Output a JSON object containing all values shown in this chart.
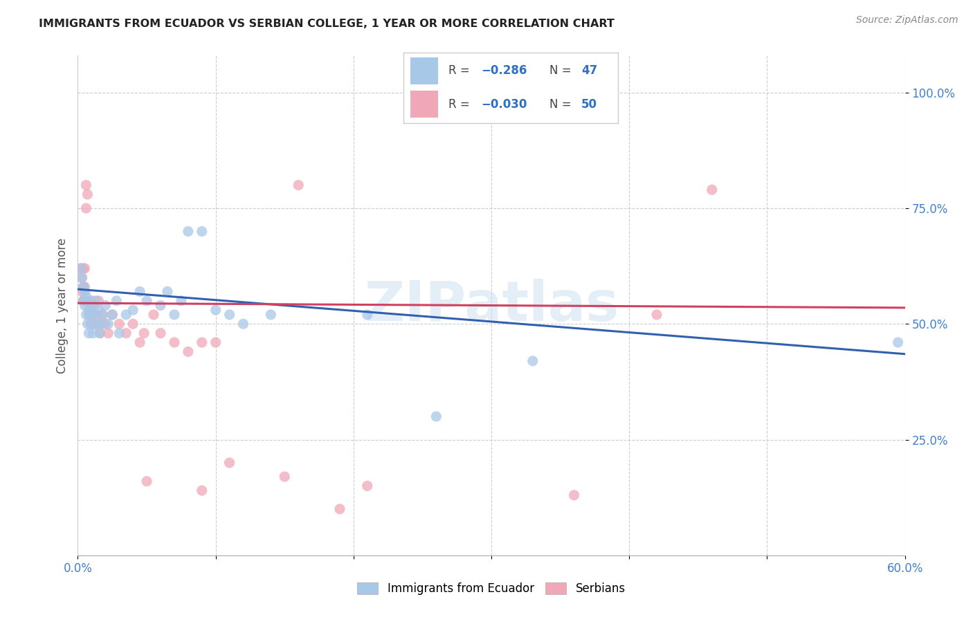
{
  "title": "IMMIGRANTS FROM ECUADOR VS SERBIAN COLLEGE, 1 YEAR OR MORE CORRELATION CHART",
  "source": "Source: ZipAtlas.com",
  "ylabel": "College, 1 year or more",
  "xlim": [
    0.0,
    0.6
  ],
  "ylim": [
    0.0,
    1.08
  ],
  "xtick_vals": [
    0.0,
    0.1,
    0.2,
    0.3,
    0.4,
    0.5,
    0.6
  ],
  "ytick_vals": [
    0.25,
    0.5,
    0.75,
    1.0
  ],
  "ytick_labels": [
    "25.0%",
    "50.0%",
    "75.0%",
    "100.0%"
  ],
  "legend_label_blue": "Immigrants from Ecuador",
  "legend_label_pink": "Serbians",
  "blue_color": "#a8c8e8",
  "pink_color": "#f0a8b8",
  "trend_blue_color": "#3060b0",
  "trend_pink_color": "#d04060",
  "watermark": "ZIPatlas",
  "blue_trend": [
    0.575,
    0.435
  ],
  "pink_trend": [
    0.545,
    0.535
  ],
  "blue_scatter": [
    [
      0.002,
      0.62
    ],
    [
      0.003,
      0.6
    ],
    [
      0.004,
      0.58
    ],
    [
      0.004,
      0.55
    ],
    [
      0.005,
      0.57
    ],
    [
      0.005,
      0.54
    ],
    [
      0.006,
      0.56
    ],
    [
      0.006,
      0.52
    ],
    [
      0.007,
      0.55
    ],
    [
      0.007,
      0.5
    ],
    [
      0.008,
      0.53
    ],
    [
      0.008,
      0.48
    ],
    [
      0.009,
      0.52
    ],
    [
      0.01,
      0.54
    ],
    [
      0.01,
      0.5
    ],
    [
      0.011,
      0.48
    ],
    [
      0.012,
      0.52
    ],
    [
      0.013,
      0.55
    ],
    [
      0.014,
      0.5
    ],
    [
      0.015,
      0.53
    ],
    [
      0.016,
      0.48
    ],
    [
      0.017,
      0.5
    ],
    [
      0.018,
      0.52
    ],
    [
      0.02,
      0.54
    ],
    [
      0.022,
      0.5
    ],
    [
      0.025,
      0.52
    ],
    [
      0.028,
      0.55
    ],
    [
      0.03,
      0.48
    ],
    [
      0.035,
      0.52
    ],
    [
      0.04,
      0.53
    ],
    [
      0.045,
      0.57
    ],
    [
      0.05,
      0.55
    ],
    [
      0.06,
      0.54
    ],
    [
      0.065,
      0.57
    ],
    [
      0.07,
      0.52
    ],
    [
      0.075,
      0.55
    ],
    [
      0.08,
      0.7
    ],
    [
      0.09,
      0.7
    ],
    [
      0.1,
      0.53
    ],
    [
      0.11,
      0.52
    ],
    [
      0.12,
      0.5
    ],
    [
      0.14,
      0.52
    ],
    [
      0.21,
      0.52
    ],
    [
      0.26,
      0.3
    ],
    [
      0.33,
      0.42
    ],
    [
      0.595,
      0.46
    ]
  ],
  "pink_scatter": [
    [
      0.002,
      0.62
    ],
    [
      0.003,
      0.6
    ],
    [
      0.003,
      0.57
    ],
    [
      0.004,
      0.62
    ],
    [
      0.004,
      0.58
    ],
    [
      0.004,
      0.55
    ],
    [
      0.005,
      0.62
    ],
    [
      0.005,
      0.58
    ],
    [
      0.005,
      0.55
    ],
    [
      0.006,
      0.8
    ],
    [
      0.006,
      0.75
    ],
    [
      0.007,
      0.78
    ],
    [
      0.007,
      0.55
    ],
    [
      0.008,
      0.52
    ],
    [
      0.009,
      0.5
    ],
    [
      0.01,
      0.55
    ],
    [
      0.01,
      0.52
    ],
    [
      0.011,
      0.5
    ],
    [
      0.012,
      0.54
    ],
    [
      0.013,
      0.52
    ],
    [
      0.014,
      0.5
    ],
    [
      0.015,
      0.55
    ],
    [
      0.016,
      0.48
    ],
    [
      0.017,
      0.5
    ],
    [
      0.018,
      0.52
    ],
    [
      0.02,
      0.5
    ],
    [
      0.022,
      0.48
    ],
    [
      0.025,
      0.52
    ],
    [
      0.03,
      0.5
    ],
    [
      0.035,
      0.48
    ],
    [
      0.04,
      0.5
    ],
    [
      0.045,
      0.46
    ],
    [
      0.048,
      0.48
    ],
    [
      0.055,
      0.52
    ],
    [
      0.06,
      0.48
    ],
    [
      0.07,
      0.46
    ],
    [
      0.08,
      0.44
    ],
    [
      0.09,
      0.46
    ],
    [
      0.1,
      0.46
    ],
    [
      0.05,
      0.16
    ],
    [
      0.09,
      0.14
    ],
    [
      0.11,
      0.2
    ],
    [
      0.15,
      0.17
    ],
    [
      0.19,
      0.1
    ],
    [
      0.21,
      0.15
    ],
    [
      0.36,
      0.13
    ],
    [
      0.42,
      0.52
    ],
    [
      0.16,
      0.8
    ],
    [
      0.24,
      0.97
    ],
    [
      0.46,
      0.79
    ]
  ]
}
